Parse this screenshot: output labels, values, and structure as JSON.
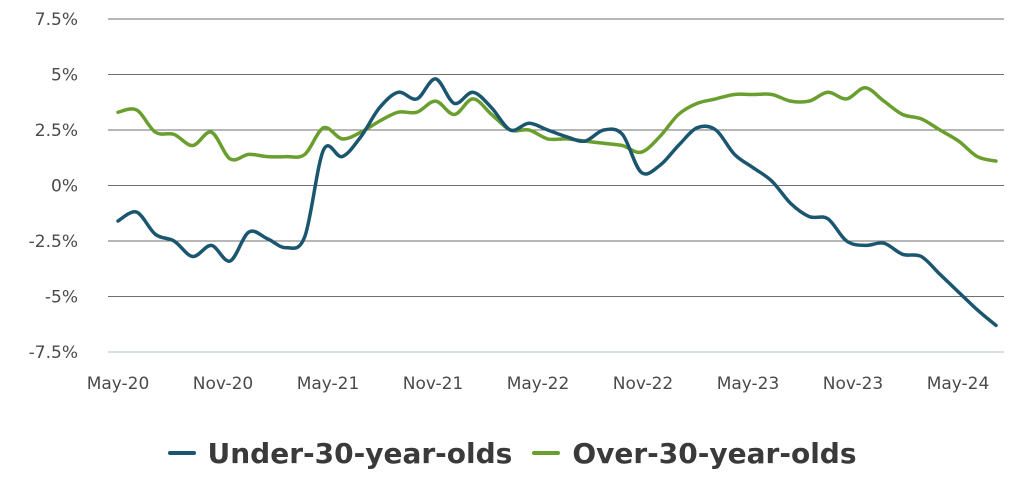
{
  "chart_data": {
    "type": "line",
    "title": "",
    "xlabel": "",
    "ylabel": "",
    "x_tick_labels": [
      "May-20",
      "Nov-20",
      "May-21",
      "Nov-21",
      "May-22",
      "Nov-22",
      "May-23",
      "Nov-23",
      "May-24"
    ],
    "y_tick_labels": [
      "7.5%",
      "5%",
      "2.5%",
      "0%",
      "-2.5%",
      "-5%",
      "-7.5%"
    ],
    "y_ticks": [
      7.5,
      5,
      2.5,
      0,
      -2.5,
      -5,
      -7.5
    ],
    "ylim": [
      -7.5,
      7.5
    ],
    "x_unit": "months since May-20",
    "xlim": [
      0,
      50
    ],
    "grid": "horizontal",
    "legend_position": "bottom",
    "series": [
      {
        "name": "Under-30-year-olds",
        "color": "#1b5670",
        "points": [
          [
            0,
            -1.6
          ],
          [
            1,
            -1.2
          ],
          [
            2,
            -2.2
          ],
          [
            3,
            -2.5
          ],
          [
            4,
            -3.2
          ],
          [
            5,
            -2.7
          ],
          [
            6,
            -3.4
          ],
          [
            7,
            -2.1
          ],
          [
            8,
            -2.4
          ],
          [
            9,
            -2.8
          ],
          [
            10,
            -2.3
          ],
          [
            11,
            1.6
          ],
          [
            12,
            1.3
          ],
          [
            13,
            2.2
          ],
          [
            14,
            3.5
          ],
          [
            15,
            4.2
          ],
          [
            16,
            3.9
          ],
          [
            17,
            4.8
          ],
          [
            18,
            3.7
          ],
          [
            19,
            4.2
          ],
          [
            20,
            3.5
          ],
          [
            21,
            2.5
          ],
          [
            22,
            2.8
          ],
          [
            23,
            2.5
          ],
          [
            24,
            2.2
          ],
          [
            25,
            2.0
          ],
          [
            26,
            2.5
          ],
          [
            27,
            2.3
          ],
          [
            28,
            0.6
          ],
          [
            29,
            0.9
          ],
          [
            30,
            1.8
          ],
          [
            31,
            2.6
          ],
          [
            32,
            2.5
          ],
          [
            33,
            1.4
          ],
          [
            34,
            0.8
          ],
          [
            35,
            0.2
          ],
          [
            36,
            -0.8
          ],
          [
            37,
            -1.4
          ],
          [
            38,
            -1.5
          ],
          [
            39,
            -2.5
          ],
          [
            40,
            -2.7
          ],
          [
            41,
            -2.6
          ],
          [
            42,
            -3.1
          ],
          [
            43,
            -3.2
          ],
          [
            44,
            -4.0
          ],
          [
            45,
            -4.8
          ],
          [
            46,
            -5.6
          ],
          [
            47,
            -6.3
          ]
        ]
      },
      {
        "name": "Over-30-year-olds",
        "color": "#6a9f2f",
        "points": [
          [
            0,
            3.3
          ],
          [
            1,
            3.4
          ],
          [
            2,
            2.4
          ],
          [
            3,
            2.3
          ],
          [
            4,
            1.8
          ],
          [
            5,
            2.4
          ],
          [
            6,
            1.2
          ],
          [
            7,
            1.4
          ],
          [
            8,
            1.3
          ],
          [
            9,
            1.3
          ],
          [
            10,
            1.4
          ],
          [
            11,
            2.6
          ],
          [
            12,
            2.1
          ],
          [
            13,
            2.4
          ],
          [
            14,
            2.9
          ],
          [
            15,
            3.3
          ],
          [
            16,
            3.3
          ],
          [
            17,
            3.8
          ],
          [
            18,
            3.2
          ],
          [
            19,
            3.9
          ],
          [
            20,
            3.2
          ],
          [
            21,
            2.5
          ],
          [
            22,
            2.5
          ],
          [
            23,
            2.1
          ],
          [
            24,
            2.1
          ],
          [
            25,
            2.0
          ],
          [
            26,
            1.9
          ],
          [
            27,
            1.8
          ],
          [
            28,
            1.5
          ],
          [
            29,
            2.2
          ],
          [
            30,
            3.2
          ],
          [
            31,
            3.7
          ],
          [
            32,
            3.9
          ],
          [
            33,
            4.1
          ],
          [
            34,
            4.1
          ],
          [
            35,
            4.1
          ],
          [
            36,
            3.8
          ],
          [
            37,
            3.8
          ],
          [
            38,
            4.2
          ],
          [
            39,
            3.9
          ],
          [
            40,
            4.4
          ],
          [
            41,
            3.8
          ],
          [
            42,
            3.2
          ],
          [
            43,
            3.0
          ],
          [
            44,
            2.5
          ],
          [
            45,
            2.0
          ],
          [
            46,
            1.3
          ],
          [
            47,
            1.1
          ]
        ]
      }
    ]
  }
}
